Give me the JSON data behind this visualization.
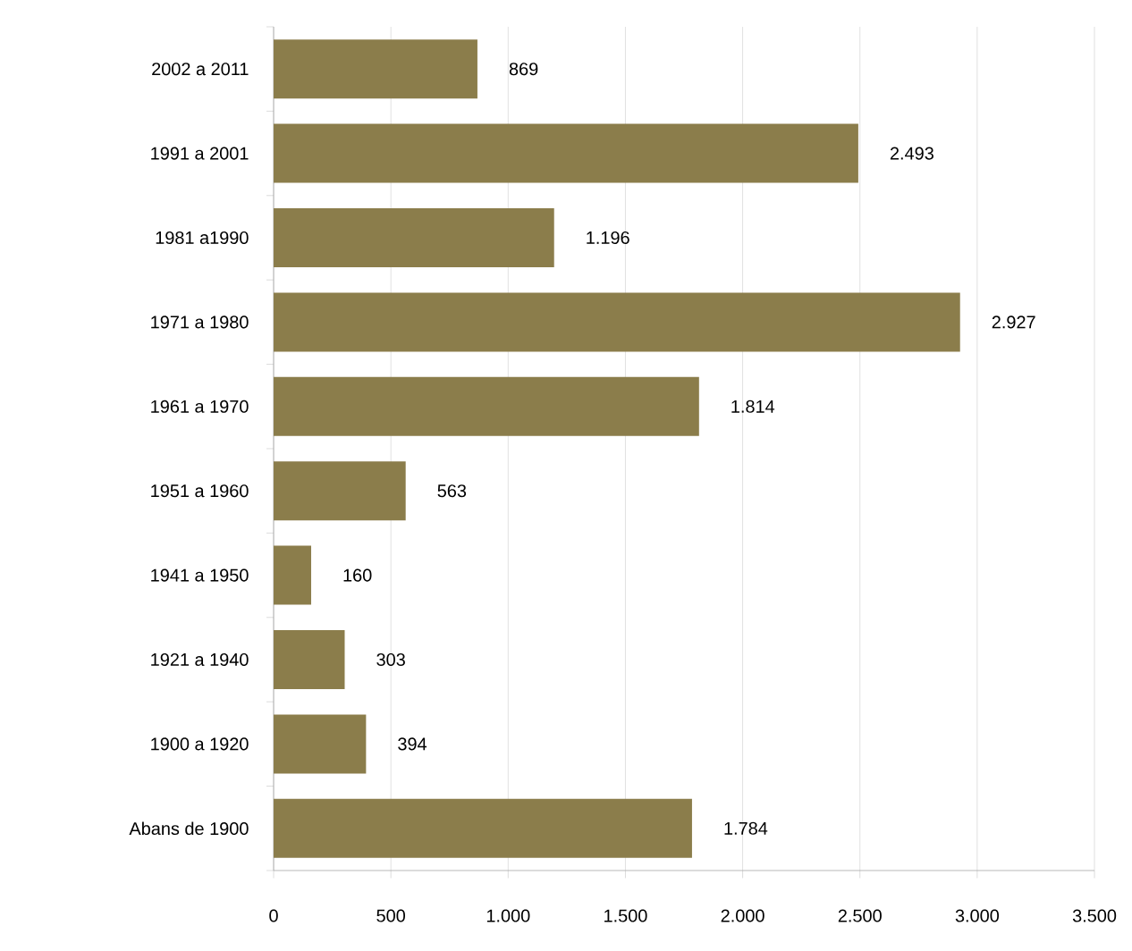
{
  "chart_data": {
    "type": "bar",
    "orientation": "horizontal",
    "categories": [
      "2002 a 2011",
      "1991 a 2001",
      "1981 a1990",
      "1971 a 1980",
      "1961 a 1970",
      "1951 a 1960",
      "1941 a 1950",
      "1921 a 1940",
      "1900 a 1920",
      "Abans de 1900"
    ],
    "values": [
      869,
      2493,
      1196,
      2927,
      1814,
      563,
      160,
      303,
      394,
      1784
    ],
    "value_labels": [
      "869",
      "2.493",
      "1.196",
      "2.927",
      "1.814",
      "563",
      "160",
      "303",
      "394",
      "1.784"
    ],
    "color": "#8b7d4b",
    "xlim": [
      0,
      3500
    ],
    "xticks": [
      0,
      {
        "value": 500,
        "label": "500"
      },
      {
        "value": 1000,
        "label": "1.000"
      },
      {
        "value": 1500,
        "label": "1.500"
      },
      {
        "value": 2000,
        "label": "2.000"
      },
      {
        "value": 2500,
        "label": "2.500"
      },
      {
        "value": 3000,
        "label": "3.000"
      },
      {
        "value": 3500,
        "label": "3.500"
      }
    ],
    "grid": "x"
  }
}
